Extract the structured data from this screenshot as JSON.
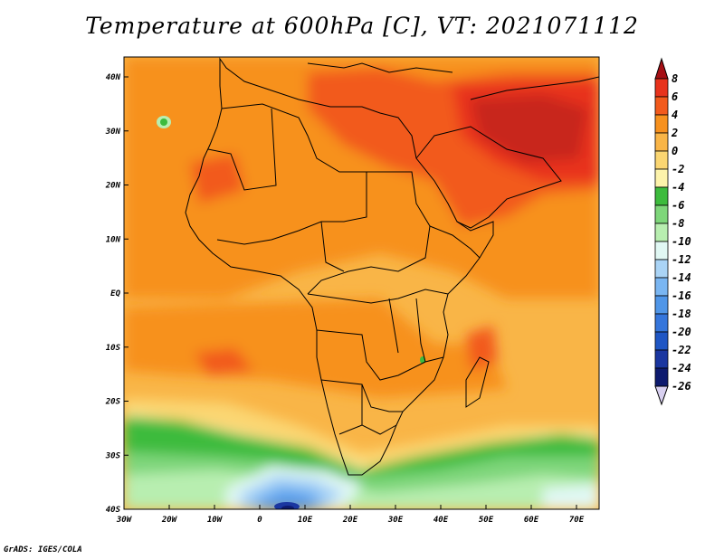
{
  "title": "Temperature at 600hPa [C], VT: 2021071112",
  "footer": "GrADS: IGES/COLA",
  "map": {
    "lon_ticks": [
      "30W",
      "20W",
      "10W",
      "0",
      "10E",
      "20E",
      "30E",
      "40E",
      "50E",
      "60E",
      "70E"
    ],
    "lat_ticks": [
      "40N",
      "30N",
      "20N",
      "10N",
      "EQ",
      "10S",
      "20S",
      "30S",
      "40S"
    ]
  },
  "colorbar": {
    "labels": [
      "8",
      "6",
      "4",
      "2",
      "0",
      "-2",
      "-4",
      "-6",
      "-8",
      "-10",
      "-12",
      "-14",
      "-16",
      "-18",
      "-20",
      "-22",
      "-24",
      "-26"
    ],
    "colors": [
      "#a50f15",
      "#e8331c",
      "#f25a1c",
      "#f7911e",
      "#f9b547",
      "#fbd672",
      "#fdf3ab",
      "#3dbb3d",
      "#7ed67a",
      "#b8eeb0",
      "#e1f8f4",
      "#aad4f6",
      "#7ab6f2",
      "#5096e8",
      "#3576dc",
      "#1f56c4",
      "#1a36a0",
      "#0d1a6e",
      "#d8d0f0"
    ]
  }
}
